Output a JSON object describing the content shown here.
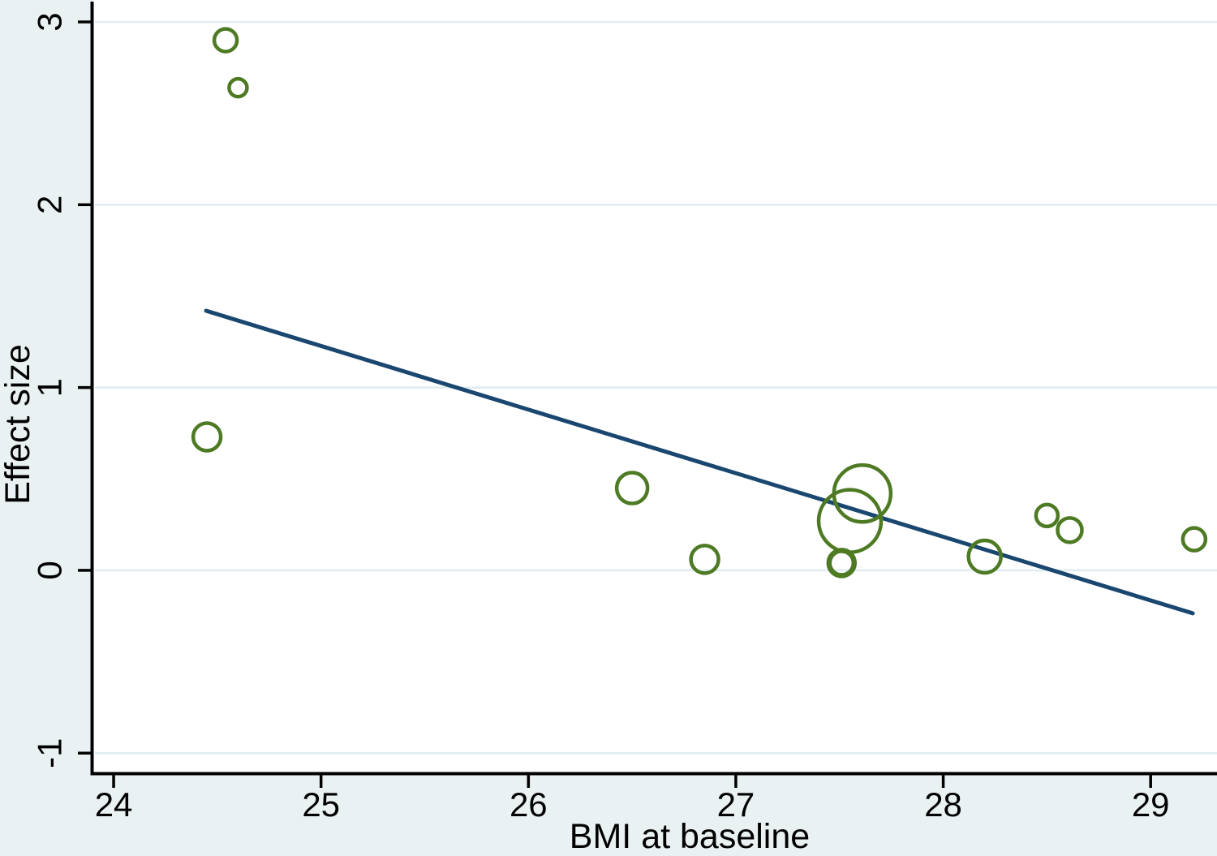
{
  "figure": {
    "background_color": "#eaf1f3",
    "plot_background_color": "#ffffff",
    "axis_color": "#000000",
    "grid_color": "#dfecf0",
    "text_color": "#000000"
  },
  "chart_data": {
    "type": "scatter",
    "subtype": "bubble-meta-regression",
    "title": "",
    "xlabel": "BMI at baseline",
    "ylabel": "Effect size",
    "x_ticks": [
      24,
      25,
      26,
      27,
      28,
      29
    ],
    "y_ticks": [
      -1,
      0,
      1,
      2,
      3
    ],
    "xlim": [
      23.902,
      29.32
    ],
    "ylim": [
      -1.11,
      3.12
    ],
    "grid": "horizontal-only",
    "legend": "none",
    "marker_color": "#4d7a23",
    "marker_fill": "none",
    "series": [
      {
        "name": "studies",
        "points": [
          {
            "x": 24.45,
            "y": 0.73,
            "r": 17
          },
          {
            "x": 24.54,
            "y": 2.9,
            "r": 14
          },
          {
            "x": 24.6,
            "y": 2.64,
            "r": 11
          },
          {
            "x": 26.5,
            "y": 0.45,
            "r": 19
          },
          {
            "x": 26.85,
            "y": 0.06,
            "r": 17
          },
          {
            "x": 27.51,
            "y": 0.04,
            "r": 15.5,
            "thick": true
          },
          {
            "x": 27.55,
            "y": 0.27,
            "r": 38.5
          },
          {
            "x": 27.61,
            "y": 0.42,
            "r": 35
          },
          {
            "x": 28.2,
            "y": 0.075,
            "r": 20
          },
          {
            "x": 28.5,
            "y": 0.3,
            "r": 13.5
          },
          {
            "x": 28.61,
            "y": 0.22,
            "r": 15
          },
          {
            "x": 29.21,
            "y": 0.17,
            "r": 14
          }
        ]
      }
    ],
    "regression_line": {
      "color": "#1a476f",
      "x1": 24.446,
      "y1": 1.42,
      "x2": 29.203,
      "y2": -0.235
    }
  }
}
